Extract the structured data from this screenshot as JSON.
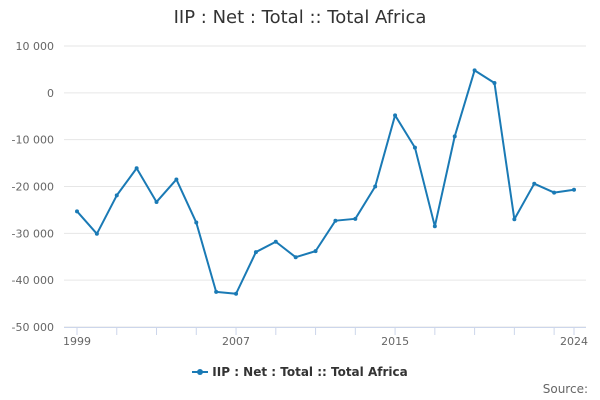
{
  "colors": {
    "series": "#1a7ab5"
  },
  "footer": {
    "source_label": "Source:"
  },
  "chart_data": {
    "type": "line",
    "title": "IIP : Net : Total :: Total Africa",
    "xlabel": "",
    "ylabel": "",
    "x": [
      1999,
      2000,
      2001,
      2002,
      2003,
      2004,
      2005,
      2006,
      2007,
      2008,
      2009,
      2010,
      2011,
      2012,
      2013,
      2014,
      2015,
      2016,
      2017,
      2018,
      2019,
      2020,
      2021,
      2022,
      2023,
      2024
    ],
    "series": [
      {
        "name": "IIP : Net : Total :: Total Africa",
        "values": [
          -25300,
          -30100,
          -21900,
          -16100,
          -23300,
          -18500,
          -27700,
          -42500,
          -42900,
          -34000,
          -31800,
          -35100,
          -33800,
          -27300,
          -26900,
          -20000,
          -4800,
          -11700,
          -28500,
          -9300,
          4800,
          2100,
          -27000,
          -19400,
          -21300,
          -20700
        ]
      }
    ],
    "x_tick_labels": [
      "1999",
      "2007",
      "2015",
      "2024"
    ],
    "y_tick_labels": [
      "10 000",
      "0",
      "-10 000",
      "-20 000",
      "-30 000",
      "-40 000",
      "-50 000"
    ],
    "y_ticks": [
      10000,
      0,
      -10000,
      -20000,
      -30000,
      -40000,
      -50000
    ],
    "xlim": [
      1999,
      2024
    ],
    "ylim": [
      -50000,
      10000
    ],
    "grid": true,
    "legend_position": "bottom-center"
  }
}
